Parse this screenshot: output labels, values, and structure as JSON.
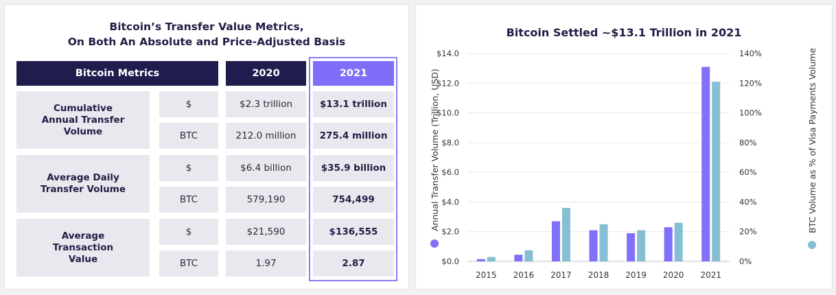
{
  "table": {
    "title_line1": "Bitcoin’s Transfer Value Metrics,",
    "title_line2": "On Both An Absolute and Price-Adjusted Basis",
    "headers": [
      "Bitcoin Metrics",
      "2020",
      "2021"
    ],
    "rows": [
      {
        "metric": "Cumulative Annual Transfer Volume",
        "units": [
          {
            "unit": "$",
            "v2020": "$2.3 trillion",
            "v2021": "$13.1 trillion"
          },
          {
            "unit": "BTC",
            "v2020": "212.0 million",
            "v2021": "275.4 million"
          }
        ]
      },
      {
        "metric": "Average Daily Transfer Volume",
        "units": [
          {
            "unit": "$",
            "v2020": "$6.4 billion",
            "v2021": "$35.9 billion"
          },
          {
            "unit": "BTC",
            "v2020": "579,190",
            "v2021": "754,499"
          }
        ]
      },
      {
        "metric": "Average Transaction Value",
        "units": [
          {
            "unit": "$",
            "v2020": "$21,590",
            "v2021": "$136,555"
          },
          {
            "unit": "BTC",
            "v2020": "1.97",
            "v2021": "2.87"
          }
        ]
      }
    ],
    "highlight_color": "#7f6ff8",
    "header_color": "#1f1d4d"
  },
  "chart_data": {
    "type": "bar",
    "title": "Bitcoin Settled ~$13.1 Trillion in 2021",
    "categories": [
      "2015",
      "2016",
      "2017",
      "2018",
      "2019",
      "2020",
      "2021"
    ],
    "ylabel": "Annual Transfer Volume (Trillion, USD)",
    "y2label": "BTC Volume as % of Visa Payments Volume",
    "ylim": [
      0,
      14
    ],
    "y2lim": [
      0,
      140
    ],
    "yticks": [
      "$0.0",
      "$2.0",
      "$4.0",
      "$6.0",
      "$8.0",
      "$10.0",
      "$12.0",
      "$14.0"
    ],
    "y2ticks": [
      "0%",
      "20%",
      "40%",
      "60%",
      "80%",
      "100%",
      "120%",
      "140%"
    ],
    "grid": true,
    "series": [
      {
        "axis": "left",
        "color": "#8070fa",
        "values": [
          0.15,
          0.45,
          2.7,
          2.1,
          1.9,
          2.3,
          13.1
        ]
      },
      {
        "axis": "right",
        "color": "#86bfd4",
        "values": [
          3,
          7.5,
          36,
          25,
          21,
          26,
          121
        ]
      }
    ]
  }
}
